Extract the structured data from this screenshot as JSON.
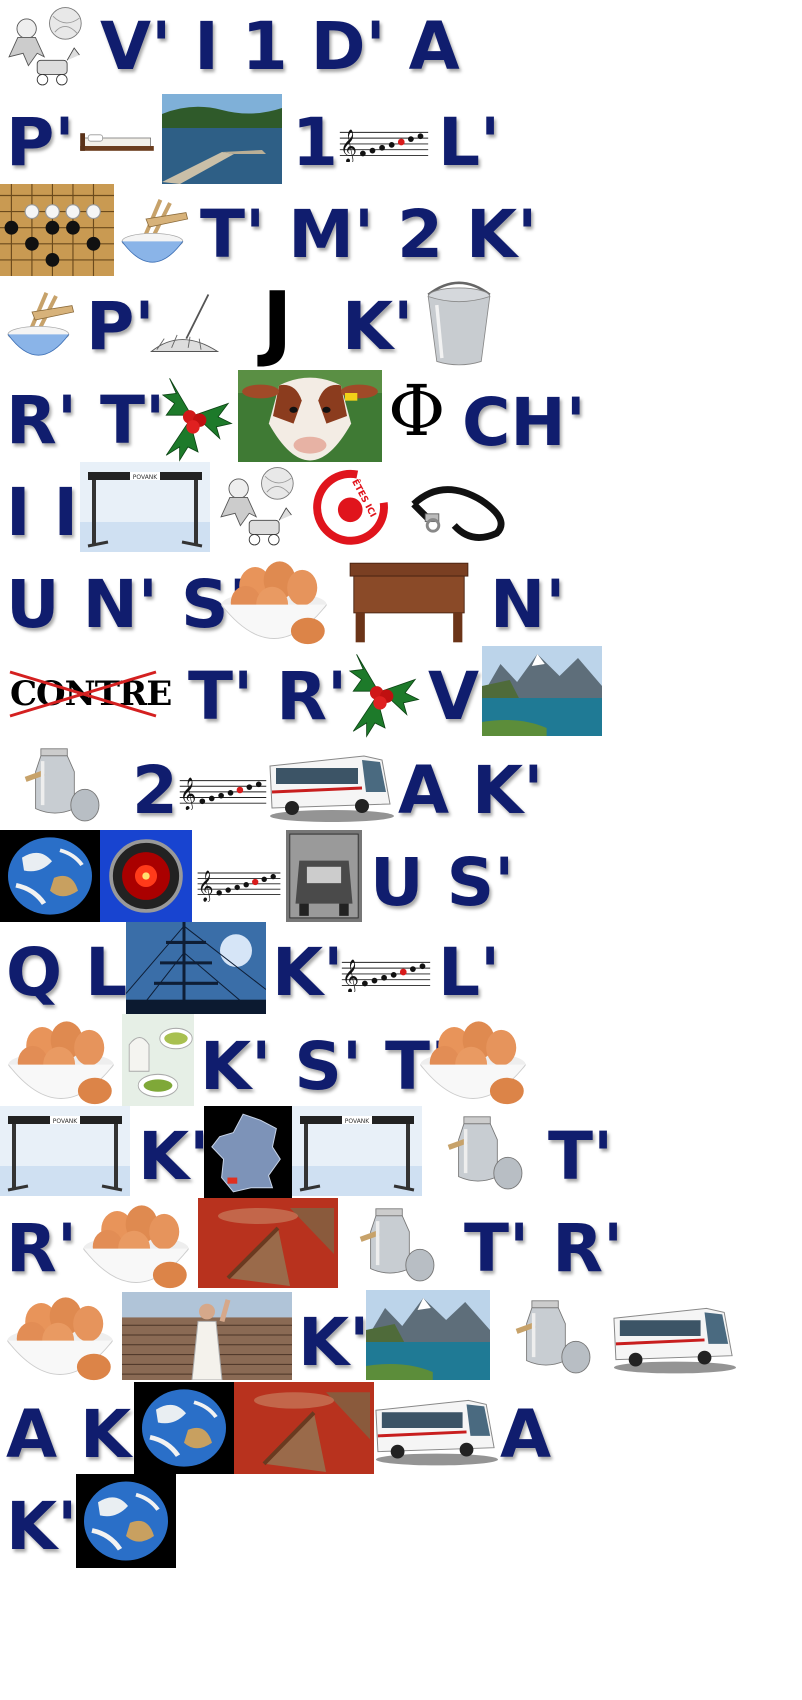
{
  "rebus": {
    "r1": {
      "t1": "V' I 1 D' A"
    },
    "r2": {
      "t1": "P'",
      "t2": "1",
      "t3": "L'"
    },
    "r3": {
      "t1": "T' M' 2 K'"
    },
    "r4": {
      "t1": "P'",
      "t2": "J",
      "t3": "K'"
    },
    "r5": {
      "t1": "R' T'",
      "t2": "Φ",
      "t3": "CH'"
    },
    "r6": {
      "t1": "I I",
      "sign": "ÊTES ICI",
      "hurdle": "POVANK"
    },
    "r7": {
      "t1": "U N' S'",
      "t2": "N'"
    },
    "r8": {
      "t1": "CONTRE",
      "t2": "T' R'",
      "t3": "V"
    },
    "r9": {
      "t1": "2",
      "t2": "A K'"
    },
    "r10": {
      "t1": "U S'"
    },
    "r11": {
      "t1": "Q L'",
      "t2": "K'",
      "t3": "L'"
    },
    "r12": {
      "t1": "K' S' T'"
    },
    "r13": {
      "t1": "K'",
      "t2": "T'"
    },
    "r14": {
      "t1": "R'",
      "t2": "T' R'"
    },
    "r15": {
      "t1": "K'"
    },
    "r16": {
      "t1": "A K'",
      "t2": "A"
    },
    "r17": {
      "t1": "K'"
    }
  },
  "icons": [
    "toys-icon",
    "bed-icon",
    "lake-dock-icon",
    "musical-note-icon",
    "go-board-icon",
    "rice-bowl-icon",
    "broom-icon",
    "bucket-icon",
    "holly-icon",
    "calf-icon",
    "hurdle-icon",
    "target-icon",
    "leash-icon",
    "eggs-icon",
    "wooden-bench-icon",
    "mountain-lake-icon",
    "milk-can-icon",
    "bus-icon",
    "earth-icon",
    "red-eye-icon",
    "old-car-icon",
    "ship-mast-icon",
    "green-tea-icon",
    "france-map-icon",
    "pie-icon",
    "roman-army-icon"
  ],
  "colors": {
    "text": "#101d6e",
    "cross": "#d42020"
  }
}
